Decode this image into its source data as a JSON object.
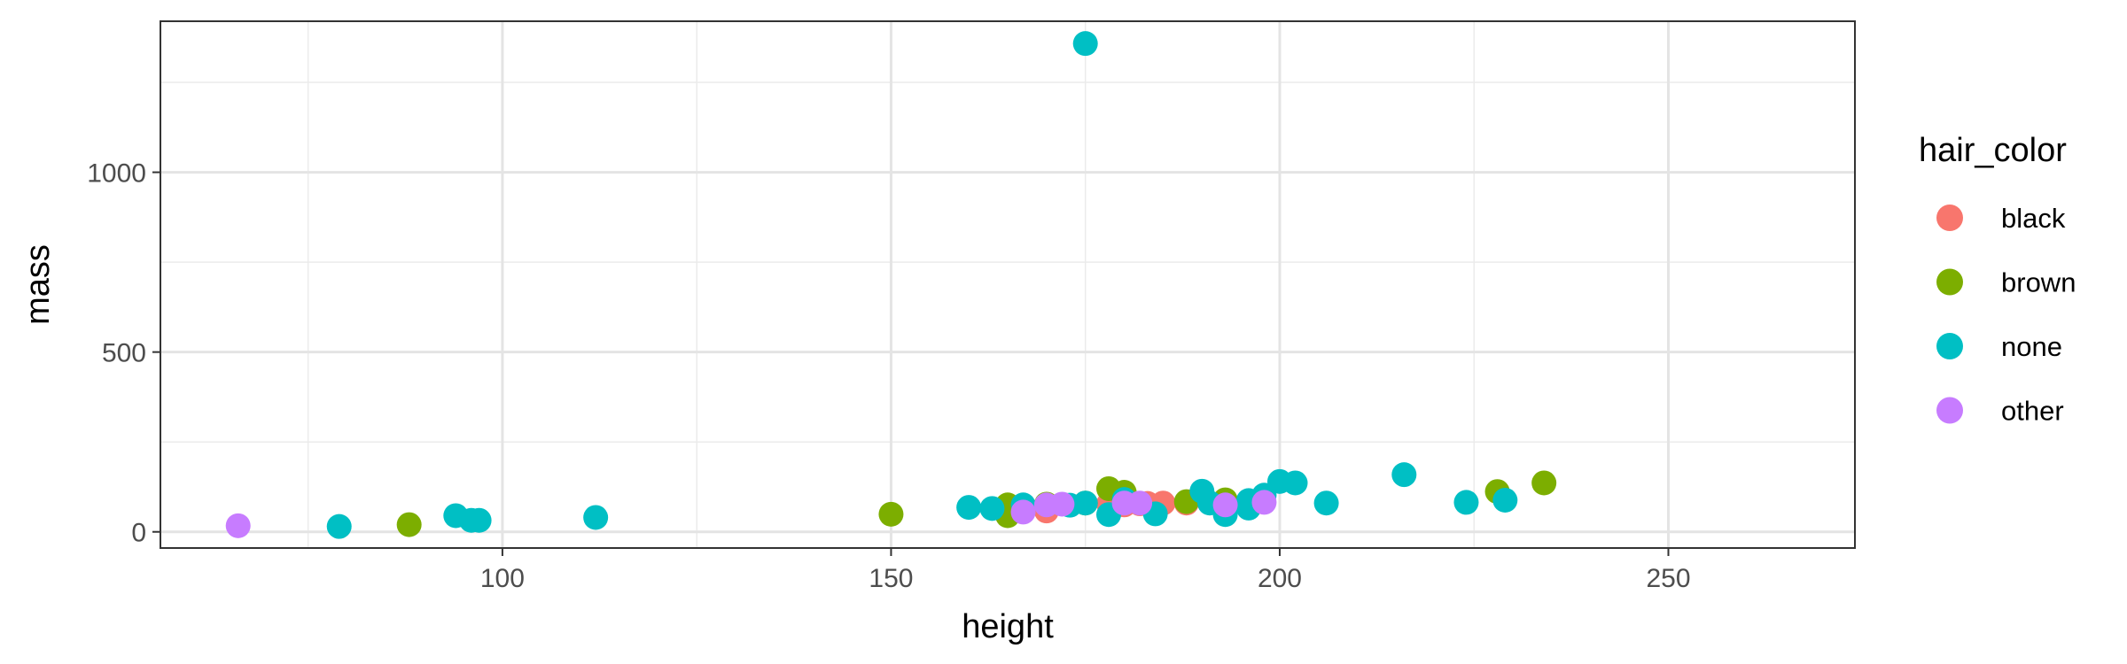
{
  "chart_data": {
    "type": "scatter",
    "title": "",
    "xlabel": "height",
    "ylabel": "mass",
    "xlim": [
      56,
      274
    ],
    "ylim": [
      -45,
      1420
    ],
    "x_ticks": [
      100,
      150,
      200,
      250
    ],
    "x_tick_labels": [
      "100",
      "150",
      "200",
      "250"
    ],
    "x_minor_ticks": [
      75,
      125,
      175,
      225
    ],
    "y_ticks": [
      0,
      500,
      1000
    ],
    "y_tick_labels": [
      "0",
      "500",
      "1000"
    ],
    "y_minor_ticks": [
      250,
      750,
      1250
    ],
    "grid": true,
    "legend": {
      "title": "hair_color",
      "placement": "right",
      "entries": [
        "black",
        "brown",
        "none",
        "other"
      ]
    },
    "colors": {
      "black": "#F8766D",
      "brown": "#7CAE00",
      "none": "#00BFC4",
      "other": "#C77CFF"
    },
    "series": [
      {
        "name": "black",
        "points": [
          [
            170,
            58
          ],
          [
            183,
            79
          ],
          [
            185,
            80
          ],
          [
            182,
            78
          ],
          [
            178,
            78
          ],
          [
            188,
            80
          ],
          [
            193,
            80
          ],
          [
            180,
            75
          ]
        ]
      },
      {
        "name": "brown",
        "points": [
          [
            88,
            20
          ],
          [
            150,
            49
          ],
          [
            165,
            75
          ],
          [
            165,
            45
          ],
          [
            178,
            120
          ],
          [
            180,
            110
          ],
          [
            188,
            84
          ],
          [
            193,
            89
          ],
          [
            228,
            112
          ],
          [
            234,
            136
          ],
          [
            170,
            77
          ],
          [
            175,
            80
          ]
        ]
      },
      {
        "name": "none",
        "points": [
          [
            175,
            1358
          ],
          [
            79,
            15
          ],
          [
            94,
            45
          ],
          [
            96,
            32
          ],
          [
            97,
            32
          ],
          [
            112,
            40
          ],
          [
            160,
            68
          ],
          [
            163,
            65
          ],
          [
            167,
            75
          ],
          [
            173,
            74
          ],
          [
            175,
            80
          ],
          [
            178,
            48
          ],
          [
            180,
            90
          ],
          [
            184,
            50
          ],
          [
            190,
            113
          ],
          [
            191,
            80
          ],
          [
            193,
            48
          ],
          [
            196,
            66
          ],
          [
            196,
            87
          ],
          [
            198,
            102
          ],
          [
            200,
            140
          ],
          [
            202,
            136
          ],
          [
            206,
            80
          ],
          [
            216,
            159
          ],
          [
            224,
            82
          ],
          [
            229,
            88
          ]
        ]
      },
      {
        "name": "other",
        "points": [
          [
            66,
            17
          ],
          [
            167,
            55
          ],
          [
            170,
            75
          ],
          [
            172,
            77
          ],
          [
            180,
            80
          ],
          [
            182,
            80
          ],
          [
            193,
            75
          ],
          [
            198,
            82
          ]
        ]
      }
    ]
  }
}
